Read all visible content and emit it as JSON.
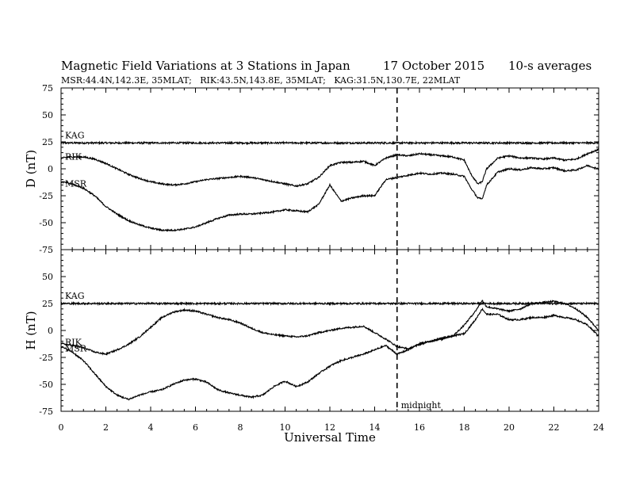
{
  "chart_data": {
    "type": "line",
    "title": "Magnetic Field Variations at 3 Stations in Japan",
    "date": "17 October 2015",
    "averaging": "10-s averages",
    "stations_info": "MSR:44.4N,142.3E, 35MLAT;   RIK:43.5N,143.8E, 35MLAT;   KAG:31.5N,130.7E, 22MLAT",
    "xlabel": "Universal Time",
    "xlim": [
      0,
      24
    ],
    "x_ticks": [
      "0",
      "2",
      "4",
      "6",
      "8",
      "10",
      "12",
      "14",
      "16",
      "18",
      "20",
      "22",
      "24"
    ],
    "grid": false,
    "annotations": [
      {
        "x": 15,
        "text": "midnight",
        "style": "dashed vertical line"
      }
    ],
    "panels": [
      {
        "ylabel": "D (nT)",
        "ylim": [
          -75,
          75
        ],
        "y_ticks": [
          "75",
          "50",
          "25",
          "0",
          "-25",
          "-50",
          "-75"
        ],
        "series": [
          {
            "name": "KAG",
            "x": [
              0,
              24
            ],
            "values": [
              24,
              24
            ]
          },
          {
            "name": "RIK",
            "x": [
              0,
              0.5,
              1,
              1.5,
              2,
              2.5,
              3,
              3.5,
              4,
              4.5,
              5,
              5.5,
              6,
              6.5,
              7,
              7.5,
              8,
              8.5,
              9,
              9.5,
              10,
              10.5,
              11,
              11.5,
              12,
              12.5,
              13,
              13.5,
              14,
              14.5,
              15,
              15.5,
              16,
              16.5,
              17,
              17.5,
              18,
              18.3,
              18.6,
              18.8,
              19,
              19.5,
              20,
              20.5,
              21,
              21.5,
              22,
              22.5,
              23,
              23.5,
              24
            ],
            "values": [
              10,
              11,
              11,
              9,
              5,
              0,
              -5,
              -9,
              -12,
              -14,
              -15,
              -14,
              -12,
              -10,
              -9,
              -8,
              -7,
              -8,
              -10,
              -12,
              -14,
              -16,
              -14,
              -8,
              3,
              6,
              6,
              7,
              3,
              10,
              13,
              12,
              14,
              13,
              12,
              11,
              8,
              -5,
              -14,
              -12,
              0,
              10,
              12,
              10,
              10,
              9,
              10,
              8,
              9,
              14,
              18
            ]
          },
          {
            "name": "MSR",
            "x": [
              0,
              0.5,
              1,
              1.5,
              2,
              2.5,
              3,
              3.5,
              4,
              4.5,
              5,
              5.5,
              6,
              6.5,
              7,
              7.5,
              8,
              8.5,
              9,
              9.5,
              10,
              10.5,
              11,
              11.5,
              12,
              12.5,
              13,
              13.5,
              14,
              14.5,
              15,
              15.5,
              16,
              16.5,
              17,
              17.5,
              18,
              18.3,
              18.6,
              18.8,
              19,
              19.5,
              20,
              20.5,
              21,
              21.5,
              22,
              22.5,
              23,
              23.5,
              24
            ],
            "values": [
              -12,
              -14,
              -18,
              -25,
              -35,
              -42,
              -48,
              -52,
              -55,
              -57,
              -57,
              -56,
              -54,
              -50,
              -46,
              -43,
              -42,
              -42,
              -41,
              -40,
              -38,
              -39,
              -40,
              -33,
              -15,
              -30,
              -27,
              -25,
              -25,
              -10,
              -8,
              -6,
              -4,
              -5,
              -4,
              -5,
              -7,
              -18,
              -27,
              -28,
              -15,
              -3,
              0,
              -1,
              1,
              0,
              1,
              -2,
              -1,
              3,
              0
            ]
          }
        ]
      },
      {
        "ylabel": "H (nT)",
        "ylim": [
          -75,
          75
        ],
        "y_ticks": [
          "75",
          "50",
          "25",
          "0",
          "-25",
          "-50",
          "-75"
        ],
        "series": [
          {
            "name": "KAG",
            "x": [
              0,
              24
            ],
            "values": [
              25,
              25
            ]
          },
          {
            "name": "RIK",
            "x": [
              0,
              0.5,
              1,
              1.5,
              2,
              2.5,
              3,
              3.5,
              4,
              4.5,
              5,
              5.5,
              6,
              6.5,
              7,
              7.5,
              8,
              8.5,
              9,
              9.5,
              10,
              10.5,
              11,
              11.5,
              12,
              12.5,
              13,
              13.5,
              14,
              14.5,
              15,
              15.5,
              16,
              16.5,
              17,
              17.5,
              18,
              18.5,
              18.8,
              19,
              19.5,
              20,
              20.5,
              21,
              21.5,
              22,
              22.5,
              23,
              23.5,
              24
            ],
            "values": [
              -12,
              -14,
              -16,
              -20,
              -22,
              -18,
              -13,
              -6,
              3,
              12,
              17,
              19,
              18,
              15,
              12,
              10,
              7,
              2,
              -2,
              -4,
              -5,
              -6,
              -5,
              -2,
              0,
              2,
              3,
              4,
              -2,
              -8,
              -15,
              -17,
              -13,
              -10,
              -8,
              -5,
              5,
              18,
              28,
              22,
              20,
              18,
              20,
              25,
              26,
              27,
              25,
              20,
              12,
              0
            ]
          },
          {
            "name": "MSR",
            "x": [
              0,
              0.5,
              1,
              1.5,
              2,
              2.5,
              3,
              3.5,
              4,
              4.5,
              5,
              5.5,
              6,
              6.5,
              7,
              7.5,
              8,
              8.5,
              9,
              9.5,
              10,
              10.5,
              11,
              11.5,
              12,
              12.5,
              13,
              13.5,
              14,
              14.5,
              15,
              15.5,
              16,
              16.5,
              17,
              17.5,
              18,
              18.5,
              18.8,
              19,
              19.5,
              20,
              20.5,
              21,
              21.5,
              22,
              22.5,
              23,
              23.5,
              24
            ],
            "values": [
              -15,
              -20,
              -28,
              -40,
              -52,
              -60,
              -64,
              -60,
              -57,
              -55,
              -50,
              -46,
              -45,
              -48,
              -55,
              -58,
              -60,
              -62,
              -60,
              -52,
              -47,
              -52,
              -48,
              -40,
              -33,
              -28,
              -25,
              -22,
              -18,
              -14,
              -22,
              -18,
              -12,
              -10,
              -7,
              -5,
              -3,
              10,
              20,
              15,
              15,
              10,
              10,
              12,
              12,
              14,
              12,
              10,
              5,
              -5
            ]
          }
        ]
      }
    ]
  }
}
